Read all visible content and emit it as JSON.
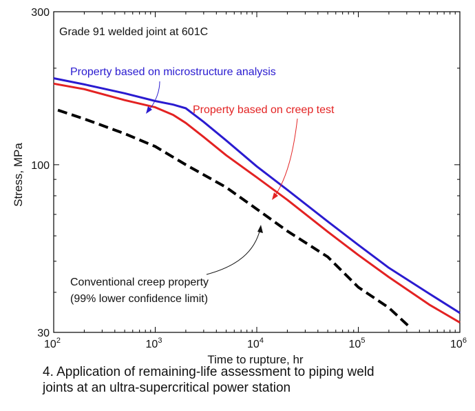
{
  "chart_data": {
    "type": "line",
    "title": "Grade 91 welded joint at 601C",
    "xlabel": "Time to rupture, hr",
    "ylabel": "Stress, MPa",
    "x_scale": "log",
    "y_scale": "log",
    "xlim": [
      100,
      1000000
    ],
    "ylim": [
      30,
      300
    ],
    "x_ticks": [
      {
        "value": 100,
        "base": "10",
        "exp": "2"
      },
      {
        "value": 1000,
        "base": "10",
        "exp": "3"
      },
      {
        "value": 10000,
        "base": "10",
        "exp": "4"
      },
      {
        "value": 100000,
        "base": "10",
        "exp": "5"
      },
      {
        "value": 1000000,
        "base": "10",
        "exp": "6"
      }
    ],
    "y_ticks": [
      {
        "value": 300,
        "label": "300"
      },
      {
        "value": 100,
        "label": "100"
      },
      {
        "value": 30,
        "label": "30"
      }
    ],
    "grid": false,
    "series": [
      {
        "name": "Property based on microstructure analysis",
        "color": "#2a1bd0",
        "style": "solid",
        "x": [
          100,
          200,
          500,
          1000,
          1500,
          2000,
          3000,
          5000,
          10000,
          20000,
          50000,
          100000,
          200000,
          500000,
          1000000
        ],
        "y": [
          186,
          178,
          167,
          158,
          154,
          150,
          136,
          119,
          98.8,
          83.5,
          66.5,
          56.2,
          47.7,
          39.6,
          34.5
        ]
      },
      {
        "name": "Property based on creep test",
        "color": "#e32222",
        "style": "solid",
        "x": [
          100,
          200,
          500,
          1000,
          1500,
          2000,
          3000,
          5000,
          10000,
          20000,
          50000,
          100000,
          200000,
          500000,
          1000000
        ],
        "y": [
          179,
          172,
          159,
          151,
          143,
          135,
          122,
          107,
          91.3,
          77.7,
          61.8,
          52.3,
          44.6,
          36.6,
          32.2
        ]
      },
      {
        "name": "Conventional creep property (99% lower confidence limit)",
        "color": "#000000",
        "style": "dashed",
        "x": [
          110,
          200,
          500,
          1000,
          2000,
          5000,
          10000,
          20000,
          50000,
          100000,
          200000,
          330000
        ],
        "y": [
          148,
          139,
          125,
          114,
          100,
          85,
          72.7,
          62.1,
          51.6,
          41.5,
          35.8,
          30.9
        ]
      }
    ],
    "annotations": [
      {
        "label": "Property based on microstructure analysis",
        "color": "#2a1bd0",
        "points_to_series": 0
      },
      {
        "label": "Property based on creep test",
        "color": "#e32222",
        "points_to_series": 1
      },
      {
        "label": "Conventional creep property",
        "label2": "(99% lower confidence limit)",
        "color": "#111111",
        "points_to_series": 2
      }
    ]
  },
  "caption": {
    "line1": "4. Application of remaining-life assessment to piping weld",
    "line2": "joints at an ultra-supercritical power station"
  }
}
